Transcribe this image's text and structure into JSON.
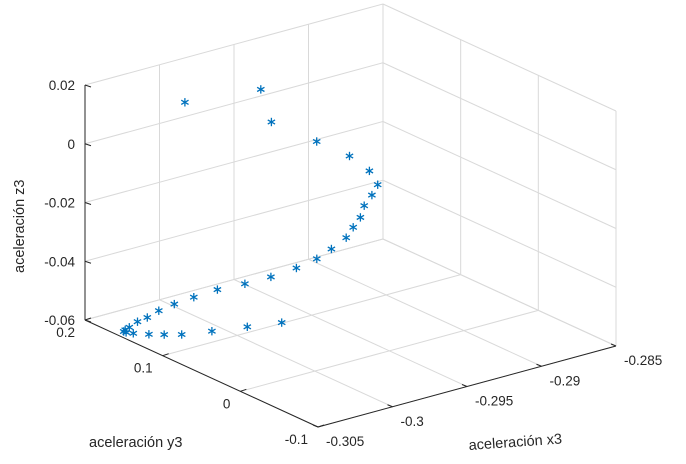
{
  "chart_data": {
    "type": "scatter",
    "marker": "asterisk",
    "colors": {
      "figure_bg": "#f0f0f0",
      "axes_bg": "#ffffff",
      "grid": "#d9d9d9",
      "axis": "#262626",
      "marker": "#0072bd"
    },
    "grid": true,
    "xlabel": "aceleración x3",
    "ylabel": "aceleración y3",
    "zlabel": "aceleración z3",
    "xlim": [
      -0.305,
      -0.285
    ],
    "ylim": [
      -0.1,
      0.2
    ],
    "zlim": [
      -0.06,
      0.02
    ],
    "xticks": [
      -0.305,
      -0.3,
      -0.295,
      -0.29,
      -0.285
    ],
    "xtick_labels": [
      "-0.305",
      "-0.3",
      "-0.295",
      "-0.29",
      "-0.285"
    ],
    "yticks": [
      -0.1,
      0,
      0.1,
      0.2
    ],
    "ytick_labels": [
      "-0.1",
      "0",
      "0.1",
      "0.2"
    ],
    "zticks": [
      -0.06,
      -0.04,
      -0.02,
      0,
      0.02
    ],
    "ztick_labels": [
      "-0.06",
      "-0.04",
      "-0.02",
      "0",
      "0.02"
    ],
    "points": [
      {
        "x": -0.3017,
        "y": 0.1347,
        "z": 0.0175
      },
      {
        "x": -0.2985,
        "y": 0.0983,
        "z": 0.0219
      },
      {
        "x": -0.298,
        "y": 0.0943,
        "z": 0.0106
      },
      {
        "x": -0.2961,
        "y": 0.0724,
        "z": 0.004
      },
      {
        "x": -0.2946,
        "y": 0.059,
        "z": -0.0014
      },
      {
        "x": -0.2938,
        "y": 0.0487,
        "z": -0.0063
      },
      {
        "x": -0.2934,
        "y": 0.0457,
        "z": -0.0112
      },
      {
        "x": -0.2936,
        "y": 0.0493,
        "z": -0.0149
      },
      {
        "x": -0.2939,
        "y": 0.0535,
        "z": -0.0186
      },
      {
        "x": -0.294,
        "y": 0.0564,
        "z": -0.0228
      },
      {
        "x": -0.2943,
        "y": 0.0599,
        "z": -0.0262
      },
      {
        "x": -0.2946,
        "y": 0.0632,
        "z": -0.0297
      },
      {
        "x": -0.2953,
        "y": 0.0689,
        "z": -0.0333
      },
      {
        "x": -0.296,
        "y": 0.0742,
        "z": -0.0363
      },
      {
        "x": -0.297,
        "y": 0.0813,
        "z": -0.0389
      },
      {
        "x": -0.2983,
        "y": 0.0892,
        "z": -0.0411
      },
      {
        "x": -0.2996,
        "y": 0.0977,
        "z": -0.0427
      },
      {
        "x": -0.301,
        "y": 0.1063,
        "z": -0.0438
      },
      {
        "x": -0.3022,
        "y": 0.1136,
        "z": -0.0456
      },
      {
        "x": -0.3032,
        "y": 0.1195,
        "z": -0.0473
      },
      {
        "x": -0.304,
        "y": 0.1241,
        "z": -0.049
      },
      {
        "x": -0.3046,
        "y": 0.1274,
        "z": -0.0509
      },
      {
        "x": -0.3051,
        "y": 0.1305,
        "z": -0.052
      },
      {
        "x": -0.3055,
        "y": 0.1334,
        "z": -0.0537
      },
      {
        "x": -0.3057,
        "y": 0.1348,
        "z": -0.0545
      },
      {
        "x": -0.3058,
        "y": 0.1348,
        "z": -0.0549
      },
      {
        "x": -0.3057,
        "y": 0.1336,
        "z": -0.0552
      },
      {
        "x": -0.3054,
        "y": 0.1302,
        "z": -0.0555
      },
      {
        "x": -0.3047,
        "y": 0.1235,
        "z": -0.056
      },
      {
        "x": -0.304,
        "y": 0.1172,
        "z": -0.0563
      },
      {
        "x": -0.3032,
        "y": 0.11,
        "z": -0.0565
      },
      {
        "x": -0.3017,
        "y": 0.0999,
        "z": -0.0562
      },
      {
        "x": -0.3,
        "y": 0.087,
        "z": -0.0555
      },
      {
        "x": -0.2984,
        "y": 0.0734,
        "z": -0.0546
      }
    ]
  }
}
